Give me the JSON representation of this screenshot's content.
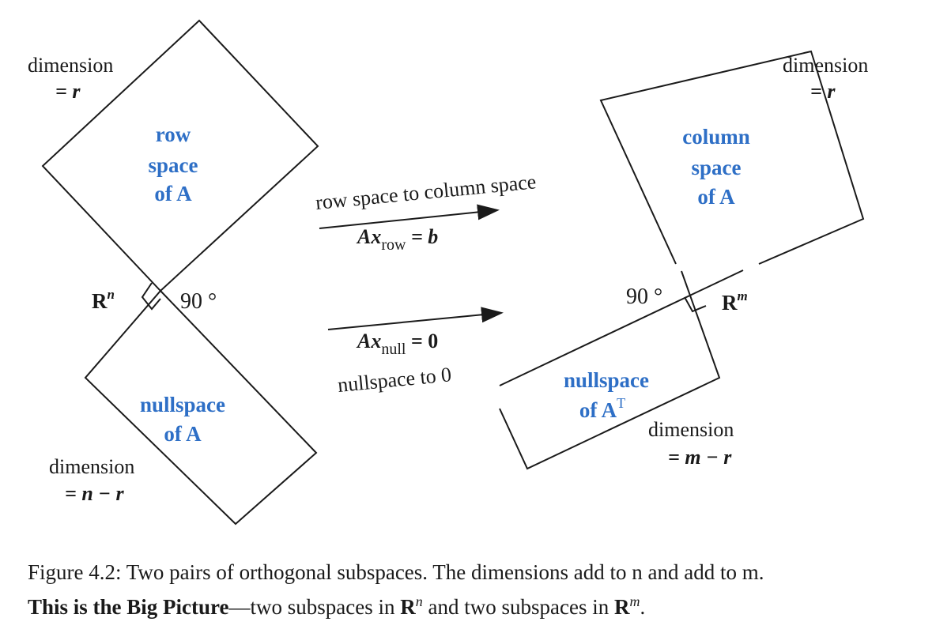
{
  "left": {
    "dim_top_label": "dimension",
    "dim_top_value": "= r",
    "row_space_line1": "row",
    "row_space_line2": "space",
    "row_space_line3": "of A",
    "space_label": "R",
    "space_exp": "n",
    "angle": "90 °",
    "nullspace_line1": "nullspace",
    "nullspace_line2": "of A",
    "dim_bottom_label": "dimension",
    "dim_bottom_value": "= n − r"
  },
  "middle": {
    "top_text": "row space to column space",
    "top_eq_lhs": "Ax",
    "top_eq_sub": "row",
    "top_eq_rhs": " = b",
    "bottom_eq_lhs": "Ax",
    "bottom_eq_sub": "null",
    "bottom_eq_rhs": " = 0",
    "bottom_text": "nullspace to 0"
  },
  "right": {
    "dim_top_label": "dimension",
    "dim_top_value": "= r",
    "col_space_line1": "column",
    "col_space_line2": "space",
    "col_space_line3": "of A",
    "angle": "90 °",
    "space_label": "R",
    "space_exp": "m",
    "nullspace_line1": "nullspace",
    "nullspace_line2": "of A",
    "nullspace_sup": "T",
    "dim_bottom_label": "dimension",
    "dim_bottom_value": "= m − r"
  },
  "caption": {
    "line1": "Figure 4.2: Two pairs of orthogonal subspaces. The dimensions add to n and add to m.",
    "bold": "This is the Big Picture",
    "rest_a": "—two subspaces in ",
    "R1": "R",
    "exp1": "n",
    "rest_b": " and two subspaces in ",
    "R2": "R",
    "exp2": "m",
    "rest_c": "."
  }
}
